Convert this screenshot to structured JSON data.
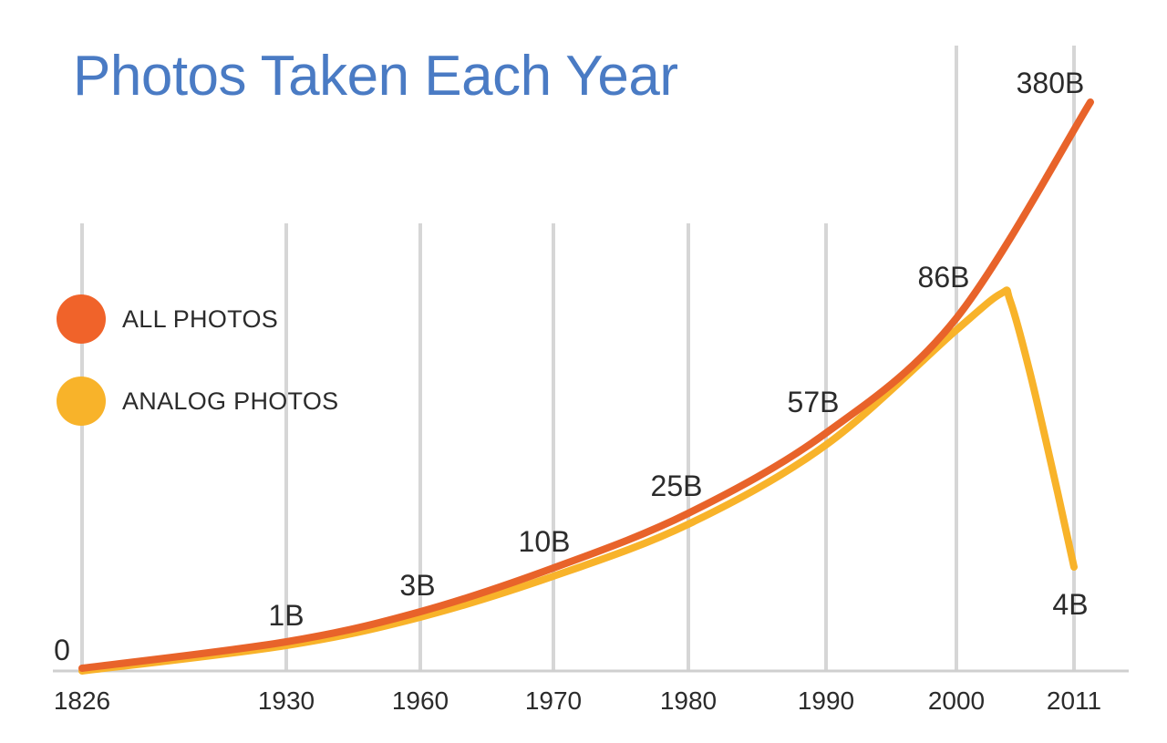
{
  "chart_data": {
    "type": "line",
    "title": "Photos Taken Each Year",
    "x": [
      1826,
      1930,
      1960,
      1970,
      1980,
      1990,
      2000,
      2011
    ],
    "x_tick_labels": [
      "1826",
      "1930",
      "1960",
      "1970",
      "1980",
      "1990",
      "2000",
      "2011"
    ],
    "data_labels": [
      {
        "x": 1826,
        "label": "0"
      },
      {
        "x": 1930,
        "label": "1B"
      },
      {
        "x": 1960,
        "label": "3B"
      },
      {
        "x": 1970,
        "label": "10B"
      },
      {
        "x": 1980,
        "label": "25B"
      },
      {
        "x": 1990,
        "label": "57B"
      },
      {
        "x": 2000,
        "label": "86B"
      },
      {
        "x": 2011,
        "label": "380B"
      },
      {
        "x": 2011,
        "label": "4B"
      }
    ],
    "series": [
      {
        "name": "ALL PHOTOS",
        "color": "#e8632a",
        "values": [
          0,
          1,
          3,
          10,
          25,
          57,
          86,
          380
        ]
      },
      {
        "name": "ANALOG PHOTOS",
        "color": "#f8b32a",
        "values": [
          0,
          1,
          3,
          10,
          25,
          57,
          86,
          4
        ]
      }
    ],
    "grid": "vertical",
    "legend_position": "left"
  }
}
